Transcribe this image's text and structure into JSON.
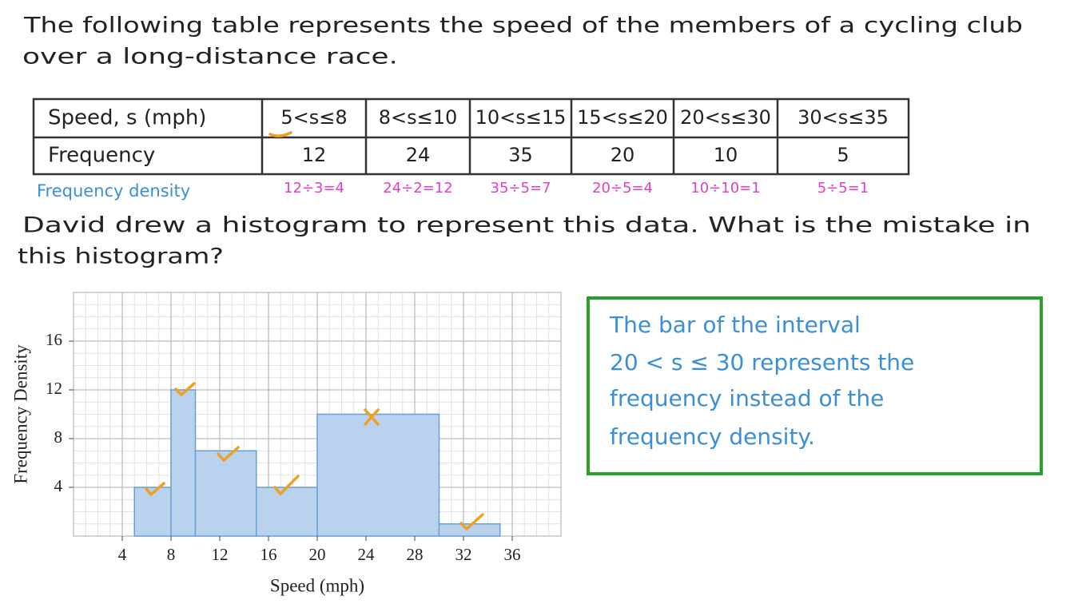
{
  "header": {
    "lines": [
      "The following table represents the speed of the members of a cycling club",
      "over a long-distance race."
    ]
  },
  "table": {
    "rows": [
      [
        "Speed, s (mph)",
        "5<s≤8",
        "8<s≤10",
        "10<s≤15",
        "15<s≤20",
        "20<s≤30",
        "30<s≤35"
      ],
      [
        "Frequency",
        "12",
        "24",
        "35",
        "20",
        "10",
        "5"
      ]
    ],
    "density_label": "Frequency density",
    "density_work": [
      "12÷3=4",
      "24÷2=12",
      "35÷5=7",
      "20÷5=4",
      "10÷10=1",
      "5÷5=1"
    ]
  },
  "question": {
    "lines": [
      "David drew a histogram to represent this data. What is the mistake in",
      "this histogram?"
    ]
  },
  "chart_data": {
    "type": "histogram",
    "x_label": "Speed (mph)",
    "y_label": "Frequency Density",
    "bins": [
      5,
      8,
      10,
      15,
      20,
      30,
      35
    ],
    "values": [
      4,
      12,
      7,
      4,
      10,
      1
    ],
    "color": "#b9d3ee",
    "xlim": [
      0,
      40
    ],
    "ylim": [
      0,
      20
    ],
    "xticks": [
      4,
      8,
      12,
      16,
      20,
      24,
      28,
      32,
      36
    ],
    "yticks": [
      4,
      8,
      12,
      16
    ],
    "grid": true
  },
  "answer": {
    "lines": [
      "The bar of the interval",
      "20 < s ≤ 30 represents the",
      "frequency instead of the",
      "frequency density."
    ]
  }
}
